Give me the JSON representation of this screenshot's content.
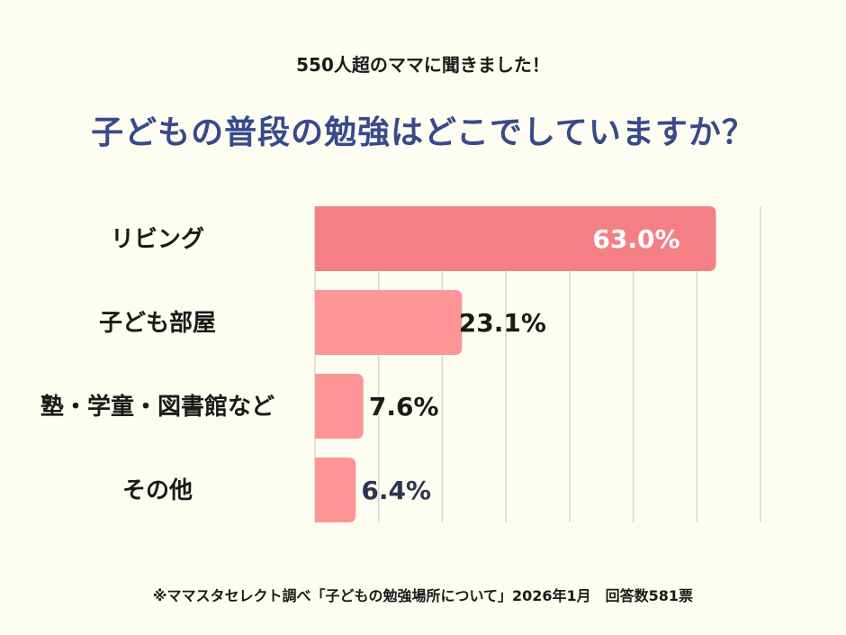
{
  "header": {
    "subtitle": "550人超のママに聞きました！",
    "title": "子どもの普段の勉強はどこでしていますか？"
  },
  "chart_data": {
    "type": "bar",
    "orientation": "horizontal",
    "categories": [
      "リビング",
      "子ども部屋",
      "塾・学童・図書館など",
      "その他"
    ],
    "values": [
      63.0,
      23.1,
      7.6,
      6.4
    ],
    "labels": [
      "63.0%",
      "23.1%",
      "7.6%",
      "6.4%"
    ],
    "xlim": [
      0,
      70
    ],
    "grid": true,
    "colors": {
      "highlight": "#f38085",
      "bar": "#fd9597",
      "grid": "#d9d6cc",
      "label": "#1a1a1a",
      "highlight_label": "#ffffff"
    }
  },
  "footer": {
    "note": "※ママスタセレクト調べ「子どもの勉強場所について」2026年1月　回答数581票"
  }
}
